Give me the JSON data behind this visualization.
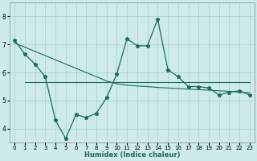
{
  "xlabel": "Humidex (Indice chaleur)",
  "background_color": "#ceeaea",
  "grid_color": "#aacfcf",
  "line_color": "#1a6b5a",
  "xlim": [
    -0.5,
    23.5
  ],
  "ylim": [
    3.5,
    8.5
  ],
  "xticks": [
    0,
    1,
    2,
    3,
    4,
    5,
    6,
    7,
    8,
    9,
    10,
    11,
    12,
    13,
    14,
    15,
    16,
    17,
    18,
    19,
    20,
    21,
    22,
    23
  ],
  "yticks": [
    4,
    5,
    6,
    7,
    8
  ],
  "main_x": [
    0,
    1,
    2,
    3,
    4,
    5,
    6,
    7,
    8,
    9,
    10,
    11,
    12,
    13,
    14,
    15,
    16,
    17,
    18,
    19,
    20,
    21,
    22,
    23
  ],
  "main_y": [
    7.15,
    6.65,
    6.3,
    5.85,
    4.3,
    3.65,
    4.5,
    4.4,
    4.55,
    5.1,
    5.95,
    7.2,
    6.95,
    6.95,
    7.9,
    6.1,
    5.85,
    5.5,
    5.5,
    5.45,
    5.2,
    5.3,
    5.35,
    5.2
  ],
  "upper_x": [
    0,
    1,
    2,
    3,
    4,
    5,
    6,
    7,
    8,
    9,
    10,
    11,
    12,
    13,
    14,
    15,
    16,
    17,
    18,
    19,
    20,
    21,
    22,
    23
  ],
  "upper_y": [
    7.05,
    6.9,
    6.75,
    6.6,
    6.45,
    6.3,
    6.15,
    6.0,
    5.85,
    5.7,
    5.6,
    5.55,
    5.52,
    5.5,
    5.47,
    5.45,
    5.43,
    5.41,
    5.39,
    5.37,
    5.35,
    5.33,
    5.3,
    5.28
  ],
  "lower_x": [
    1,
    2,
    3,
    4,
    5,
    6,
    7,
    8,
    9,
    10,
    11,
    12,
    13,
    14,
    15,
    16,
    17,
    18,
    19,
    20,
    21,
    22,
    23
  ],
  "lower_y": [
    5.65,
    5.65,
    5.65,
    5.65,
    5.65,
    5.65,
    5.65,
    5.65,
    5.65,
    5.65,
    5.65,
    5.65,
    5.65,
    5.65,
    5.65,
    5.65,
    5.65,
    5.65,
    5.65,
    5.65,
    5.65,
    5.65,
    5.65
  ]
}
